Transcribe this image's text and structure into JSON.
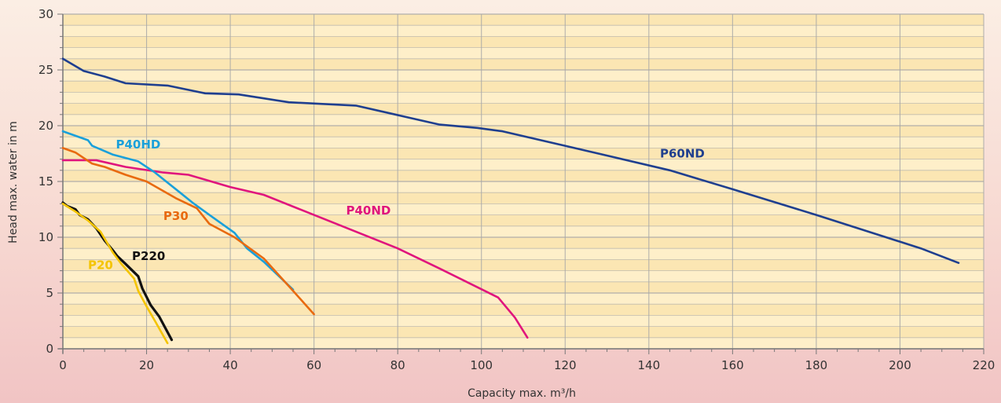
{
  "chart_data": {
    "type": "line",
    "title": "",
    "xlabel": "Capacity max. m³/h",
    "ylabel": "Head max. water in m",
    "xlim": [
      0,
      220
    ],
    "ylim": [
      0,
      30
    ],
    "x_ticks": [
      0,
      20,
      40,
      60,
      80,
      100,
      120,
      140,
      160,
      180,
      200,
      220
    ],
    "y_ticks": [
      0,
      5,
      10,
      15,
      20,
      25,
      30
    ],
    "x_tick_labels": [
      "0",
      "20",
      "40",
      "60",
      "80",
      "100",
      "120",
      "140",
      "160",
      "180",
      "200",
      "220"
    ],
    "y_tick_labels": [
      "0",
      "5",
      "10",
      "15",
      "20",
      "25",
      "30"
    ],
    "grid": true,
    "colors": {
      "plot_bg": "#fbe6b3",
      "plot_band": "#fff5d6",
      "grid": "#a8a8a8",
      "axis": "#777777"
    },
    "series": [
      {
        "name": "P60ND",
        "color": "#1f3f8f",
        "label_x": 148,
        "label_y": 17.5,
        "x": [
          0,
          5,
          10,
          15,
          25,
          34,
          42,
          54,
          70,
          90,
          99,
          105,
          120,
          145,
          160,
          180,
          205,
          214
        ],
        "y": [
          26,
          24.9,
          24.4,
          23.8,
          23.6,
          22.9,
          22.8,
          22.1,
          21.8,
          20.1,
          19.8,
          19.5,
          18.2,
          16.0,
          14.3,
          12.0,
          9.0,
          7.7
        ]
      },
      {
        "name": "P40ND",
        "color": "#e0157d",
        "label_x": 73,
        "label_y": 12.4,
        "x": [
          0,
          8,
          15,
          24,
          30,
          40,
          48,
          60,
          80,
          90,
          104,
          108,
          111
        ],
        "y": [
          16.9,
          16.9,
          16.3,
          15.8,
          15.6,
          14.5,
          13.8,
          12.0,
          9.0,
          7.2,
          4.6,
          2.8,
          1.0
        ]
      },
      {
        "name": "P40HD",
        "color": "#1aa0da",
        "label_x": 18,
        "label_y": 18.3,
        "x": [
          0,
          6,
          7,
          12,
          18,
          22,
          28,
          31,
          35,
          41,
          44,
          48,
          55
        ],
        "y": [
          19.5,
          18.7,
          18.2,
          17.4,
          16.8,
          15.8,
          14.0,
          13.1,
          12.0,
          10.4,
          9.0,
          7.8,
          5.3
        ]
      },
      {
        "name": "P30",
        "color": "#e86a10",
        "label_x": 27,
        "label_y": 11.9,
        "x": [
          0,
          3,
          7,
          10,
          15,
          20,
          27,
          32,
          35,
          41,
          48,
          55,
          60
        ],
        "y": [
          18.0,
          17.6,
          16.6,
          16.3,
          15.6,
          15.0,
          13.5,
          12.6,
          11.2,
          10.0,
          8.1,
          5.2,
          3.1
        ]
      },
      {
        "name": "P220",
        "color": "#111111",
        "label_x": 20.5,
        "label_y": 8.3,
        "x": [
          0,
          1,
          3,
          4,
          6,
          8,
          10,
          12,
          13,
          15,
          18,
          19,
          21,
          23,
          26
        ],
        "y": [
          13.1,
          12.8,
          12.5,
          12.0,
          11.6,
          10.8,
          9.7,
          8.8,
          8.3,
          7.6,
          6.5,
          5.4,
          3.9,
          2.9,
          0.8
        ]
      },
      {
        "name": "P20",
        "color": "#f4c400",
        "label_x": 9,
        "label_y": 7.5,
        "x": [
          0,
          3,
          6,
          9,
          12,
          14,
          17,
          18,
          20,
          22,
          25
        ],
        "y": [
          13.0,
          12.3,
          11.5,
          10.5,
          8.6,
          7.6,
          6.3,
          5.2,
          3.8,
          2.5,
          0.5
        ]
      }
    ]
  }
}
